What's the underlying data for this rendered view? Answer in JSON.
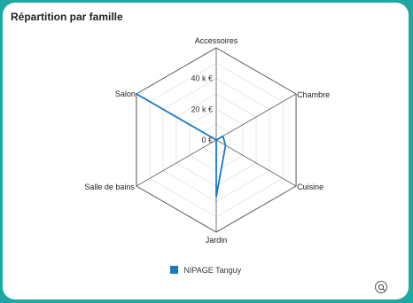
{
  "card": {
    "title": "Répartition par famille"
  },
  "chart_data": {
    "type": "radar",
    "title": "Répartition par famille",
    "categories": [
      "Accessoires",
      "Chambre",
      "Cuisine",
      "Jardin",
      "Salle de bains",
      "Salon"
    ],
    "radial_ticks": [
      0,
      20000,
      40000
    ],
    "radial_tick_labels": [
      "0 €",
      "20 k €",
      "40 k €"
    ],
    "rmax": 60000,
    "grid": true,
    "legend_position": "bottom",
    "series": [
      {
        "name": "NIPAGE Tanguy",
        "color": "#1a78c2",
        "values": [
          0,
          5000,
          7000,
          37000,
          0,
          60000
        ]
      }
    ]
  },
  "legend": {
    "items": [
      {
        "label": "NIPAGE Tanguy",
        "color": "#1a78c2"
      }
    ]
  },
  "controls": {
    "zoom_icon": "zoom-icon"
  }
}
